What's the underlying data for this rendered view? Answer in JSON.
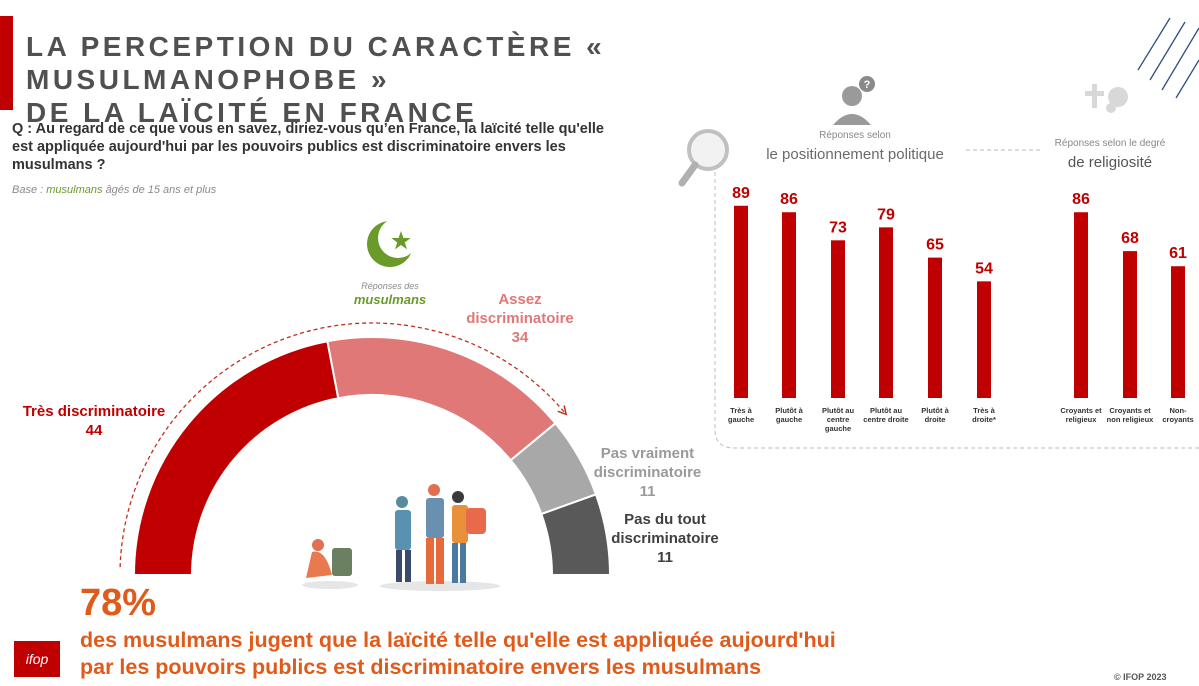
{
  "header": {
    "title_line1": "LA PERCEPTION DU CARACTÈRE « MUSULMANOPHOBE »",
    "title_line2": "DE LA LAÏCITÉ EN FRANCE",
    "question": "Q : Au regard de ce que vous en savez, diriez-vous qu’en France, la laïcité telle qu'elle est appliquée aujourd'hui par les pouvoirs publics est discriminatoire envers les musulmans ?",
    "base_prefix": "Base :",
    "base_highlight": "musulmans",
    "base_suffix": "âgés de 15 ans et plus"
  },
  "gauge_header": {
    "prefix": "Réponses des",
    "group": "musulmans"
  },
  "colors": {
    "accent": "#c00000",
    "assez": "#e07878",
    "pas_vraiment": "#a8a8a8",
    "pas_du_tout": "#595959",
    "highlight_orange": "#e05a1a",
    "green": "#6a9a2a"
  },
  "chart_data": [
    {
      "type": "pie",
      "variant": "semi-donut",
      "slices": [
        {
          "label_line1": "Très discriminatoire",
          "label_line2": "",
          "value": 44
        },
        {
          "label_line1": "Assez",
          "label_line2": "discriminatoire",
          "value": 34
        },
        {
          "label_line1": "Pas vraiment",
          "label_line2": "discriminatoire",
          "value": 11
        },
        {
          "label_line1": "Pas du tout",
          "label_line2": "discriminatoire",
          "value": 11
        }
      ]
    },
    {
      "type": "bar",
      "pre_title": "Réponses selon",
      "title": "le positionnement politique",
      "categories": [
        [
          "Très à",
          "gauche"
        ],
        [
          "Plutôt à",
          "gauche"
        ],
        [
          "Plutôt au",
          "centre",
          "gauche"
        ],
        [
          "Plutôt au",
          "centre droite"
        ],
        [
          "Plutôt à",
          "droite"
        ],
        [
          "Très à",
          "droite*"
        ]
      ],
      "values": [
        89,
        86,
        73,
        79,
        65,
        54
      ],
      "ylim": [
        0,
        100
      ]
    },
    {
      "type": "bar",
      "pre_title": "Réponses selon le degré",
      "title": "de religiosité",
      "categories": [
        [
          "Croyants et",
          "religieux"
        ],
        [
          "Croyants et",
          "non religieux"
        ],
        [
          "Non-",
          "croyants"
        ]
      ],
      "values": [
        86,
        68,
        61
      ],
      "ylim": [
        0,
        100
      ]
    }
  ],
  "summary": {
    "percent": "78%",
    "line1": "des musulmans jugent que la laïcité telle qu'elle est appliquée aujourd'hui",
    "line2": "par les pouvoirs publics est discriminatoire envers les musulmans"
  },
  "footer": {
    "logo": "ifop",
    "copyright": "© IFOP 2023"
  }
}
